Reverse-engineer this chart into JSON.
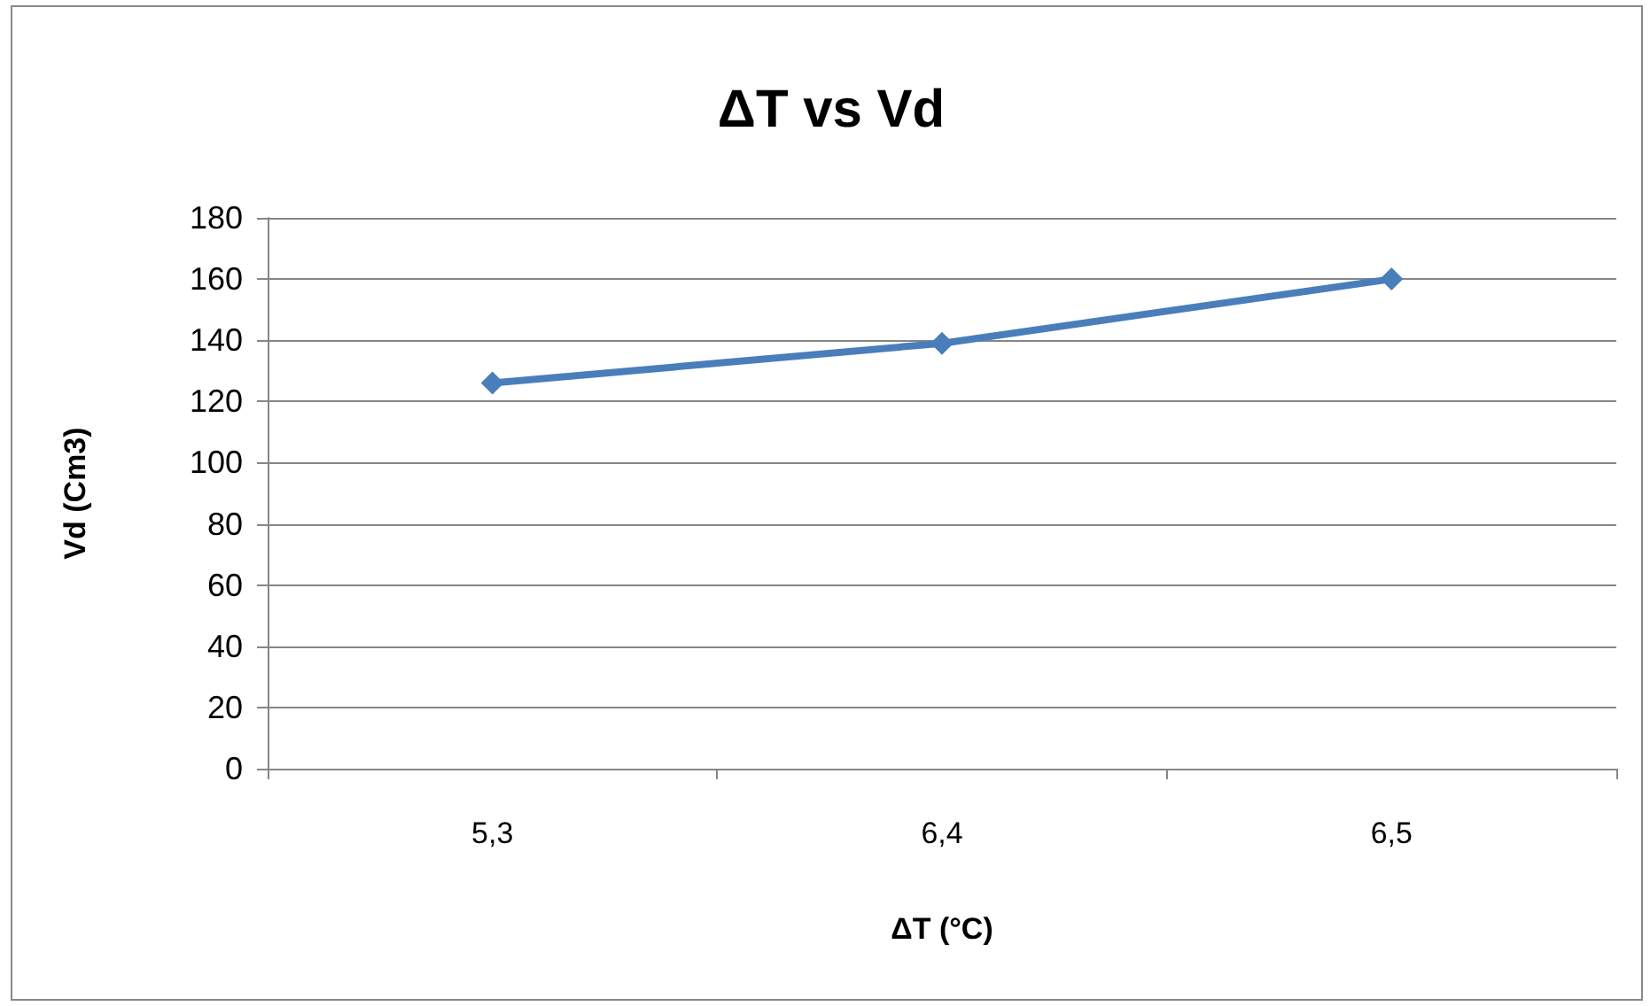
{
  "chart_data": {
    "type": "line",
    "title": "ΔT vs Vd",
    "xlabel": "ΔT (°C)",
    "ylabel": "Vd (Cm3)",
    "categories": [
      "5,3",
      "6,4",
      "6,5"
    ],
    "series": [
      {
        "color": "#4a7ebb",
        "values": [
          126,
          139,
          160
        ]
      }
    ],
    "ylim": [
      0,
      180
    ],
    "yticks": [
      0,
      20,
      40,
      60,
      80,
      100,
      120,
      140,
      160,
      180
    ],
    "grid": "y",
    "marker": "diamond",
    "line_style": "solid"
  }
}
